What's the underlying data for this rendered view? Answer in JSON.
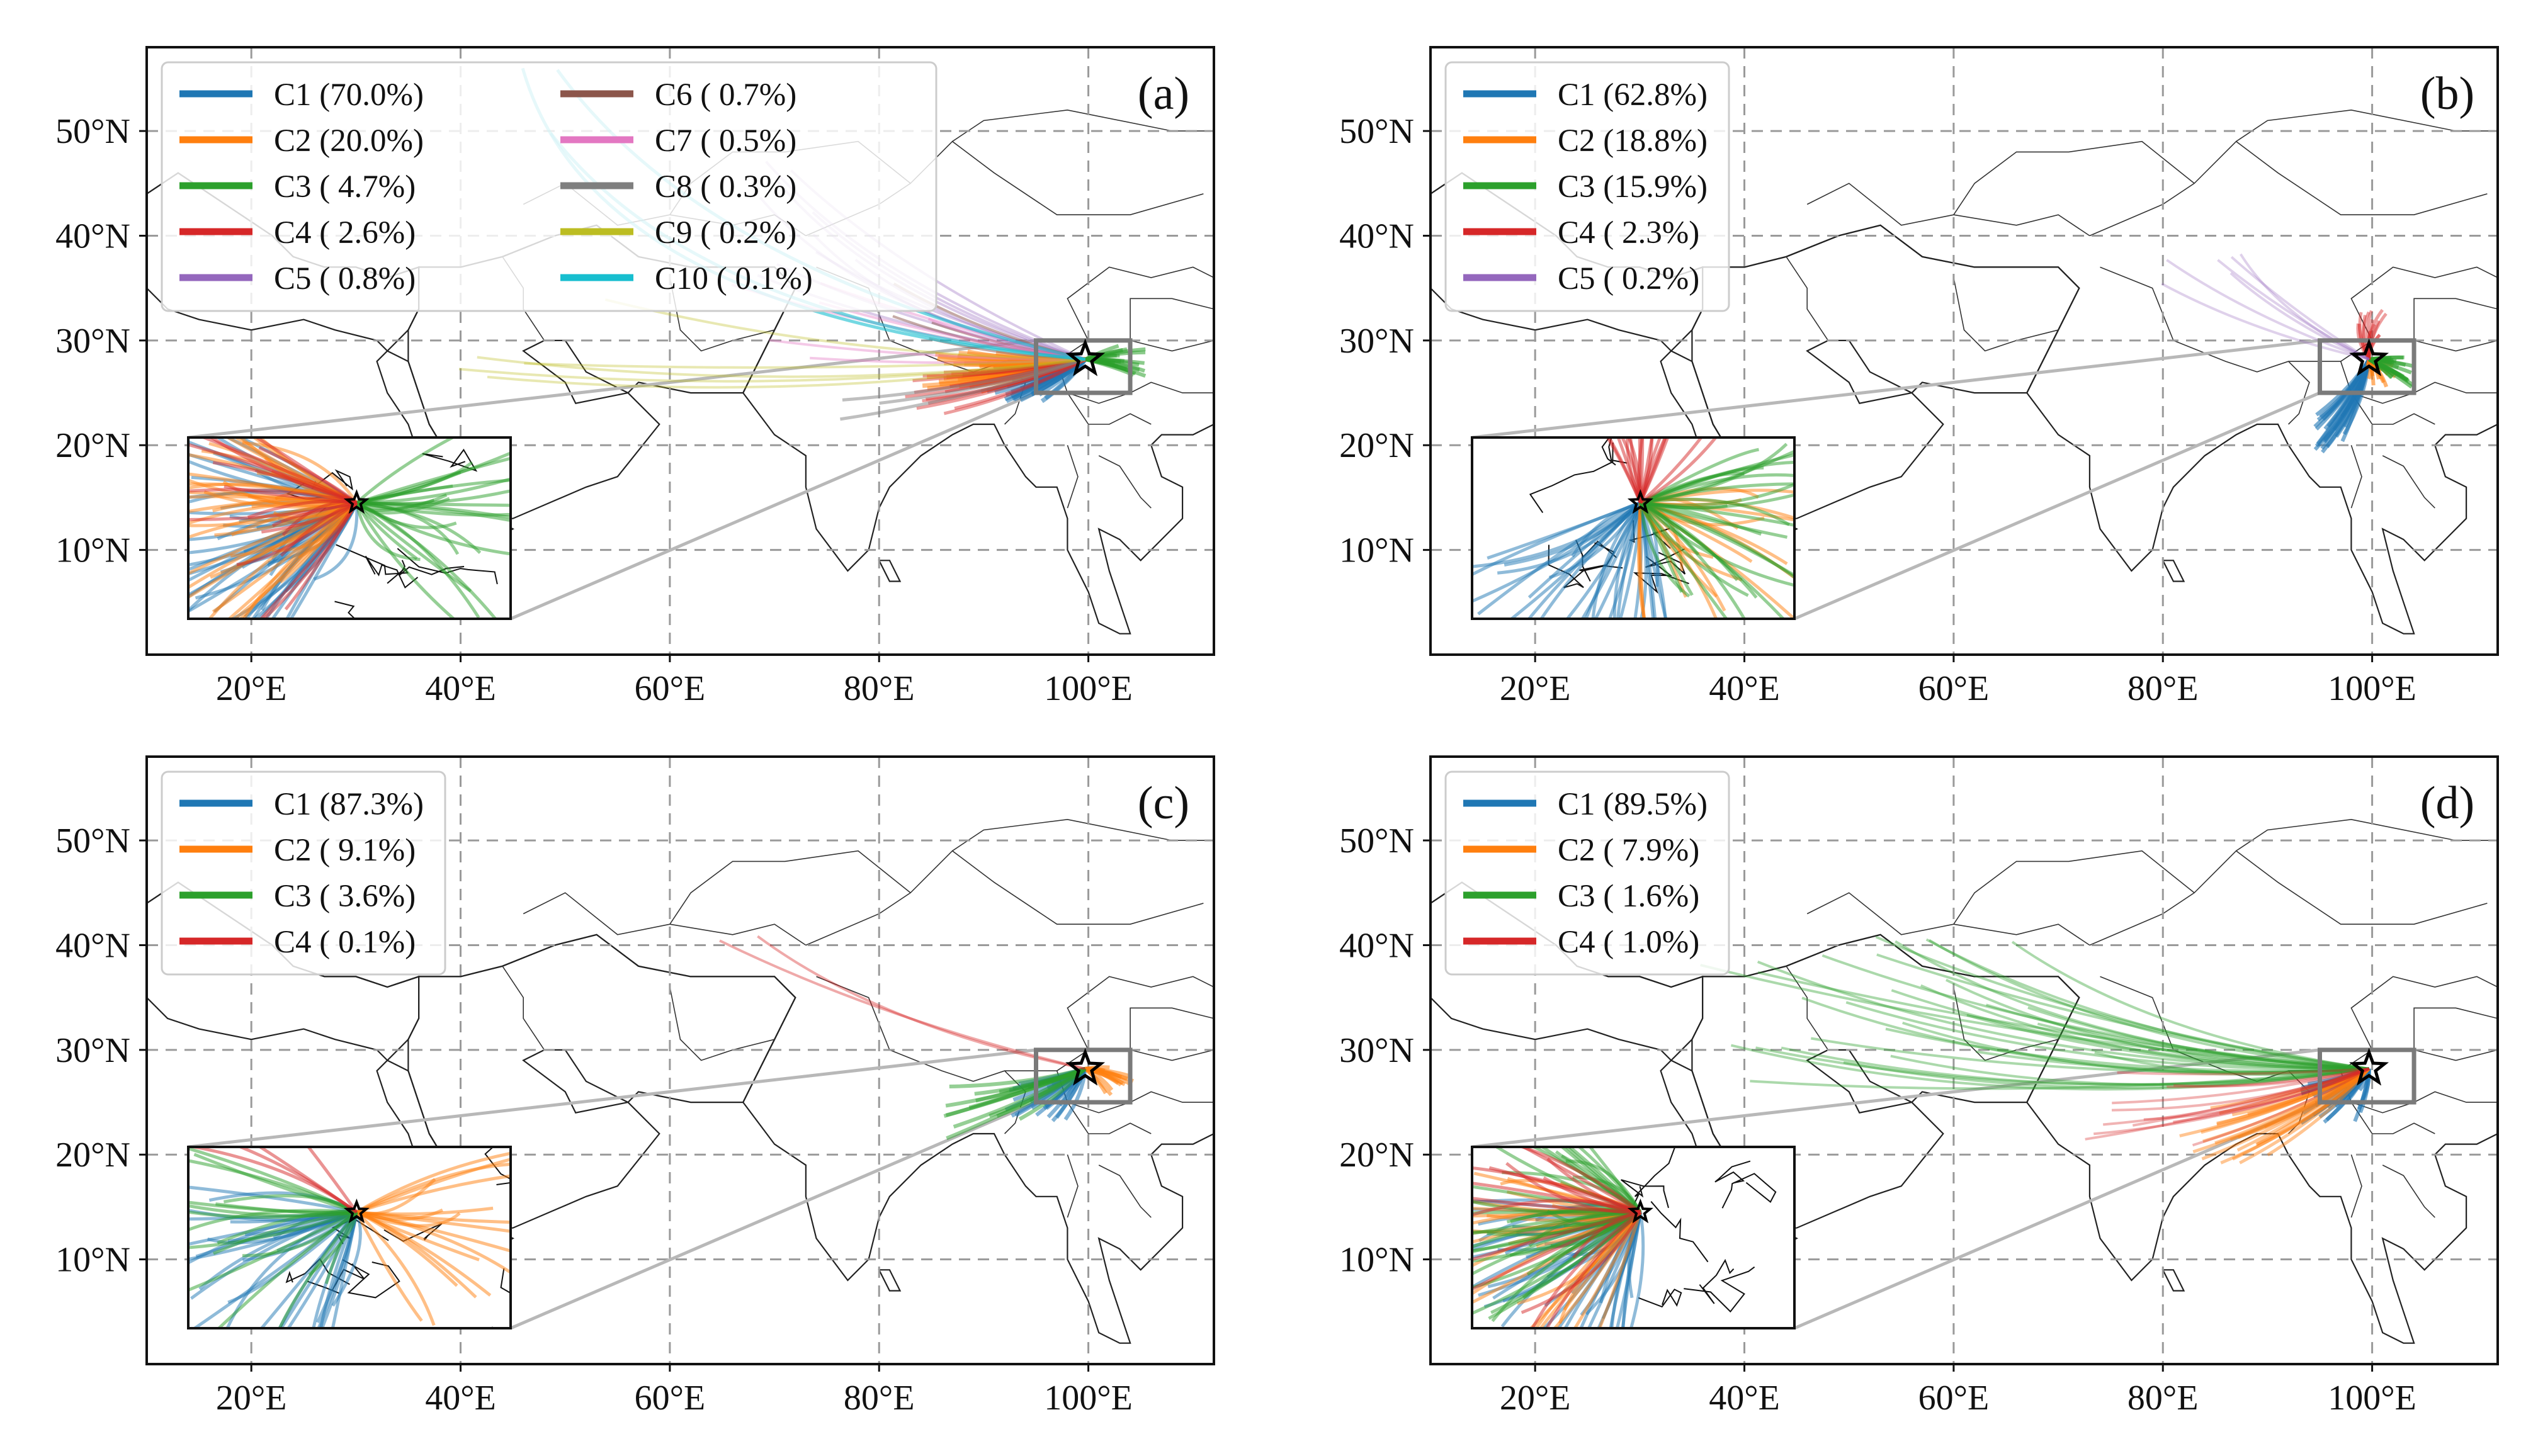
{
  "colors": {
    "C1": "#1f77b4",
    "C2": "#ff7f0e",
    "C3": "#2ca02c",
    "C4": "#d62728",
    "C5": "#9467bd",
    "C6": "#8c564b",
    "C7": "#e377c2",
    "C8": "#7f7f7f",
    "C9": "#bcbd22",
    "C10": "#17becf"
  },
  "axes": {
    "x_ticks": [
      "20°E",
      "40°E",
      "60°E",
      "80°E",
      "100°E"
    ],
    "x_tick_values": [
      20,
      40,
      60,
      80,
      100
    ],
    "y_ticks": [
      "10°N",
      "20°N",
      "30°N",
      "40°N",
      "50°N"
    ],
    "y_tick_values": [
      10,
      20,
      30,
      40,
      50
    ],
    "lon_range": [
      10,
      112
    ],
    "lat_range": [
      0,
      58
    ]
  },
  "site": {
    "lon": 99.7,
    "lat": 28.2,
    "box": {
      "lon": [
        95,
        104
      ],
      "lat": [
        25,
        30
      ]
    }
  },
  "panels": [
    {
      "label": "(a)",
      "legend": [
        {
          "key": "C1",
          "text": "C1 (70.0%)"
        },
        {
          "key": "C2",
          "text": "C2 (20.0%)"
        },
        {
          "key": "C3",
          "text": "C3 ( 4.7%)"
        },
        {
          "key": "C4",
          "text": "C4 ( 2.6%)"
        },
        {
          "key": "C5",
          "text": "C5 ( 0.8%)"
        },
        {
          "key": "C6",
          "text": "C6 ( 0.7%)"
        },
        {
          "key": "C7",
          "text": "C7 ( 0.5%)"
        },
        {
          "key": "C8",
          "text": "C8 ( 0.3%)"
        },
        {
          "key": "C9",
          "text": "C9 ( 0.2%)"
        },
        {
          "key": "C10",
          "text": "C10 ( 0.1%)"
        }
      ]
    },
    {
      "label": "(b)",
      "legend": [
        {
          "key": "C1",
          "text": "C1 (62.8%)"
        },
        {
          "key": "C2",
          "text": "C2 (18.8%)"
        },
        {
          "key": "C3",
          "text": "C3 (15.9%)"
        },
        {
          "key": "C4",
          "text": "C4 ( 2.3%)"
        },
        {
          "key": "C5",
          "text": "C5 ( 0.2%)"
        }
      ]
    },
    {
      "label": "(c)",
      "legend": [
        {
          "key": "C1",
          "text": "C1 (87.3%)"
        },
        {
          "key": "C2",
          "text": "C2 ( 9.1%)"
        },
        {
          "key": "C3",
          "text": "C3 ( 3.6%)"
        },
        {
          "key": "C4",
          "text": "C4 ( 0.1%)"
        }
      ]
    },
    {
      "label": "(d)",
      "legend": [
        {
          "key": "C1",
          "text": "C1 (89.5%)"
        },
        {
          "key": "C2",
          "text": "C2 ( 7.9%)"
        },
        {
          "key": "C3",
          "text": "C3 ( 1.6%)"
        },
        {
          "key": "C4",
          "text": "C4 ( 1.0%)"
        }
      ]
    }
  ],
  "chart_data": [
    {
      "type": "trajectory-cluster map",
      "title": "(a)",
      "clusters": [
        {
          "name": "C1",
          "percent": 70.0
        },
        {
          "name": "C2",
          "percent": 20.0
        },
        {
          "name": "C3",
          "percent": 4.7
        },
        {
          "name": "C4",
          "percent": 2.6
        },
        {
          "name": "C5",
          "percent": 0.8
        },
        {
          "name": "C6",
          "percent": 0.7
        },
        {
          "name": "C7",
          "percent": 0.5
        },
        {
          "name": "C8",
          "percent": 0.3
        },
        {
          "name": "C9",
          "percent": 0.2
        },
        {
          "name": "C10",
          "percent": 0.1
        }
      ]
    },
    {
      "type": "trajectory-cluster map",
      "title": "(b)",
      "clusters": [
        {
          "name": "C1",
          "percent": 62.8
        },
        {
          "name": "C2",
          "percent": 18.8
        },
        {
          "name": "C3",
          "percent": 15.9
        },
        {
          "name": "C4",
          "percent": 2.3
        },
        {
          "name": "C5",
          "percent": 0.2
        }
      ]
    },
    {
      "type": "trajectory-cluster map",
      "title": "(c)",
      "clusters": [
        {
          "name": "C1",
          "percent": 87.3
        },
        {
          "name": "C2",
          "percent": 9.1
        },
        {
          "name": "C3",
          "percent": 3.6
        },
        {
          "name": "C4",
          "percent": 0.1
        }
      ]
    },
    {
      "type": "trajectory-cluster map",
      "title": "(d)",
      "clusters": [
        {
          "name": "C1",
          "percent": 89.5
        },
        {
          "name": "C2",
          "percent": 7.9
        },
        {
          "name": "C3",
          "percent": 1.6
        },
        {
          "name": "C4",
          "percent": 1.0
        }
      ]
    }
  ]
}
